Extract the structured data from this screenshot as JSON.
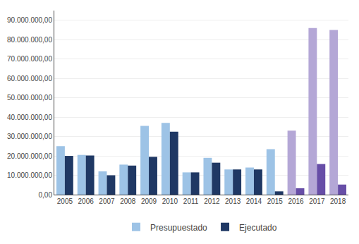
{
  "chart_data": {
    "type": "bar",
    "categories": [
      "2005",
      "2006",
      "2007",
      "2008",
      "2009",
      "2010",
      "2011",
      "2012",
      "2013",
      "2014",
      "2015",
      "2016",
      "2017",
      "2018"
    ],
    "series": [
      {
        "name": "Presupuestado",
        "color": "#9DC3E6",
        "colors": [
          "#9DC3E6",
          "#9DC3E6",
          "#9DC3E6",
          "#9DC3E6",
          "#9DC3E6",
          "#9DC3E6",
          "#9DC3E6",
          "#9DC3E6",
          "#9DC3E6",
          "#9DC3E6",
          "#9DC3E6",
          "#B4A7D6",
          "#B4A7D6",
          "#B4A7D6"
        ],
        "values": [
          25000000,
          20500000,
          12000000,
          15500000,
          35500000,
          37000000,
          11500000,
          19000000,
          13000000,
          14000000,
          23500000,
          33000000,
          86000000,
          85000000
        ]
      },
      {
        "name": "Ejecutado",
        "color": "#1F3864",
        "colors": [
          "#1F3864",
          "#1F3864",
          "#1F3864",
          "#1F3864",
          "#1F3864",
          "#1F3864",
          "#1F3864",
          "#1F3864",
          "#1F3864",
          "#1F3864",
          "#1F3864",
          "#674EA7",
          "#674EA7",
          "#674EA7"
        ],
        "values": [
          20000000,
          20200000,
          10000000,
          15000000,
          19500000,
          32500000,
          11500000,
          16500000,
          13000000,
          13000000,
          1700000,
          3300000,
          15800000,
          5200000
        ]
      }
    ],
    "ylim": [
      0,
      95000000
    ],
    "yticks": [
      {
        "value": 0,
        "label": "0,00"
      },
      {
        "value": 10000000,
        "label": "10.000.000,00"
      },
      {
        "value": 20000000,
        "label": "20.000.000,00"
      },
      {
        "value": 30000000,
        "label": "30.000.000,00"
      },
      {
        "value": 40000000,
        "label": "40.000.000,00"
      },
      {
        "value": 50000000,
        "label": "50.000.000,00"
      },
      {
        "value": 60000000,
        "label": "60.000.000,00"
      },
      {
        "value": 70000000,
        "label": "70.000.000,00"
      },
      {
        "value": 80000000,
        "label": "80.000.000,00"
      },
      {
        "value": 90000000,
        "label": "90.000.000,00"
      }
    ],
    "grid": true,
    "legend": "bottom"
  }
}
